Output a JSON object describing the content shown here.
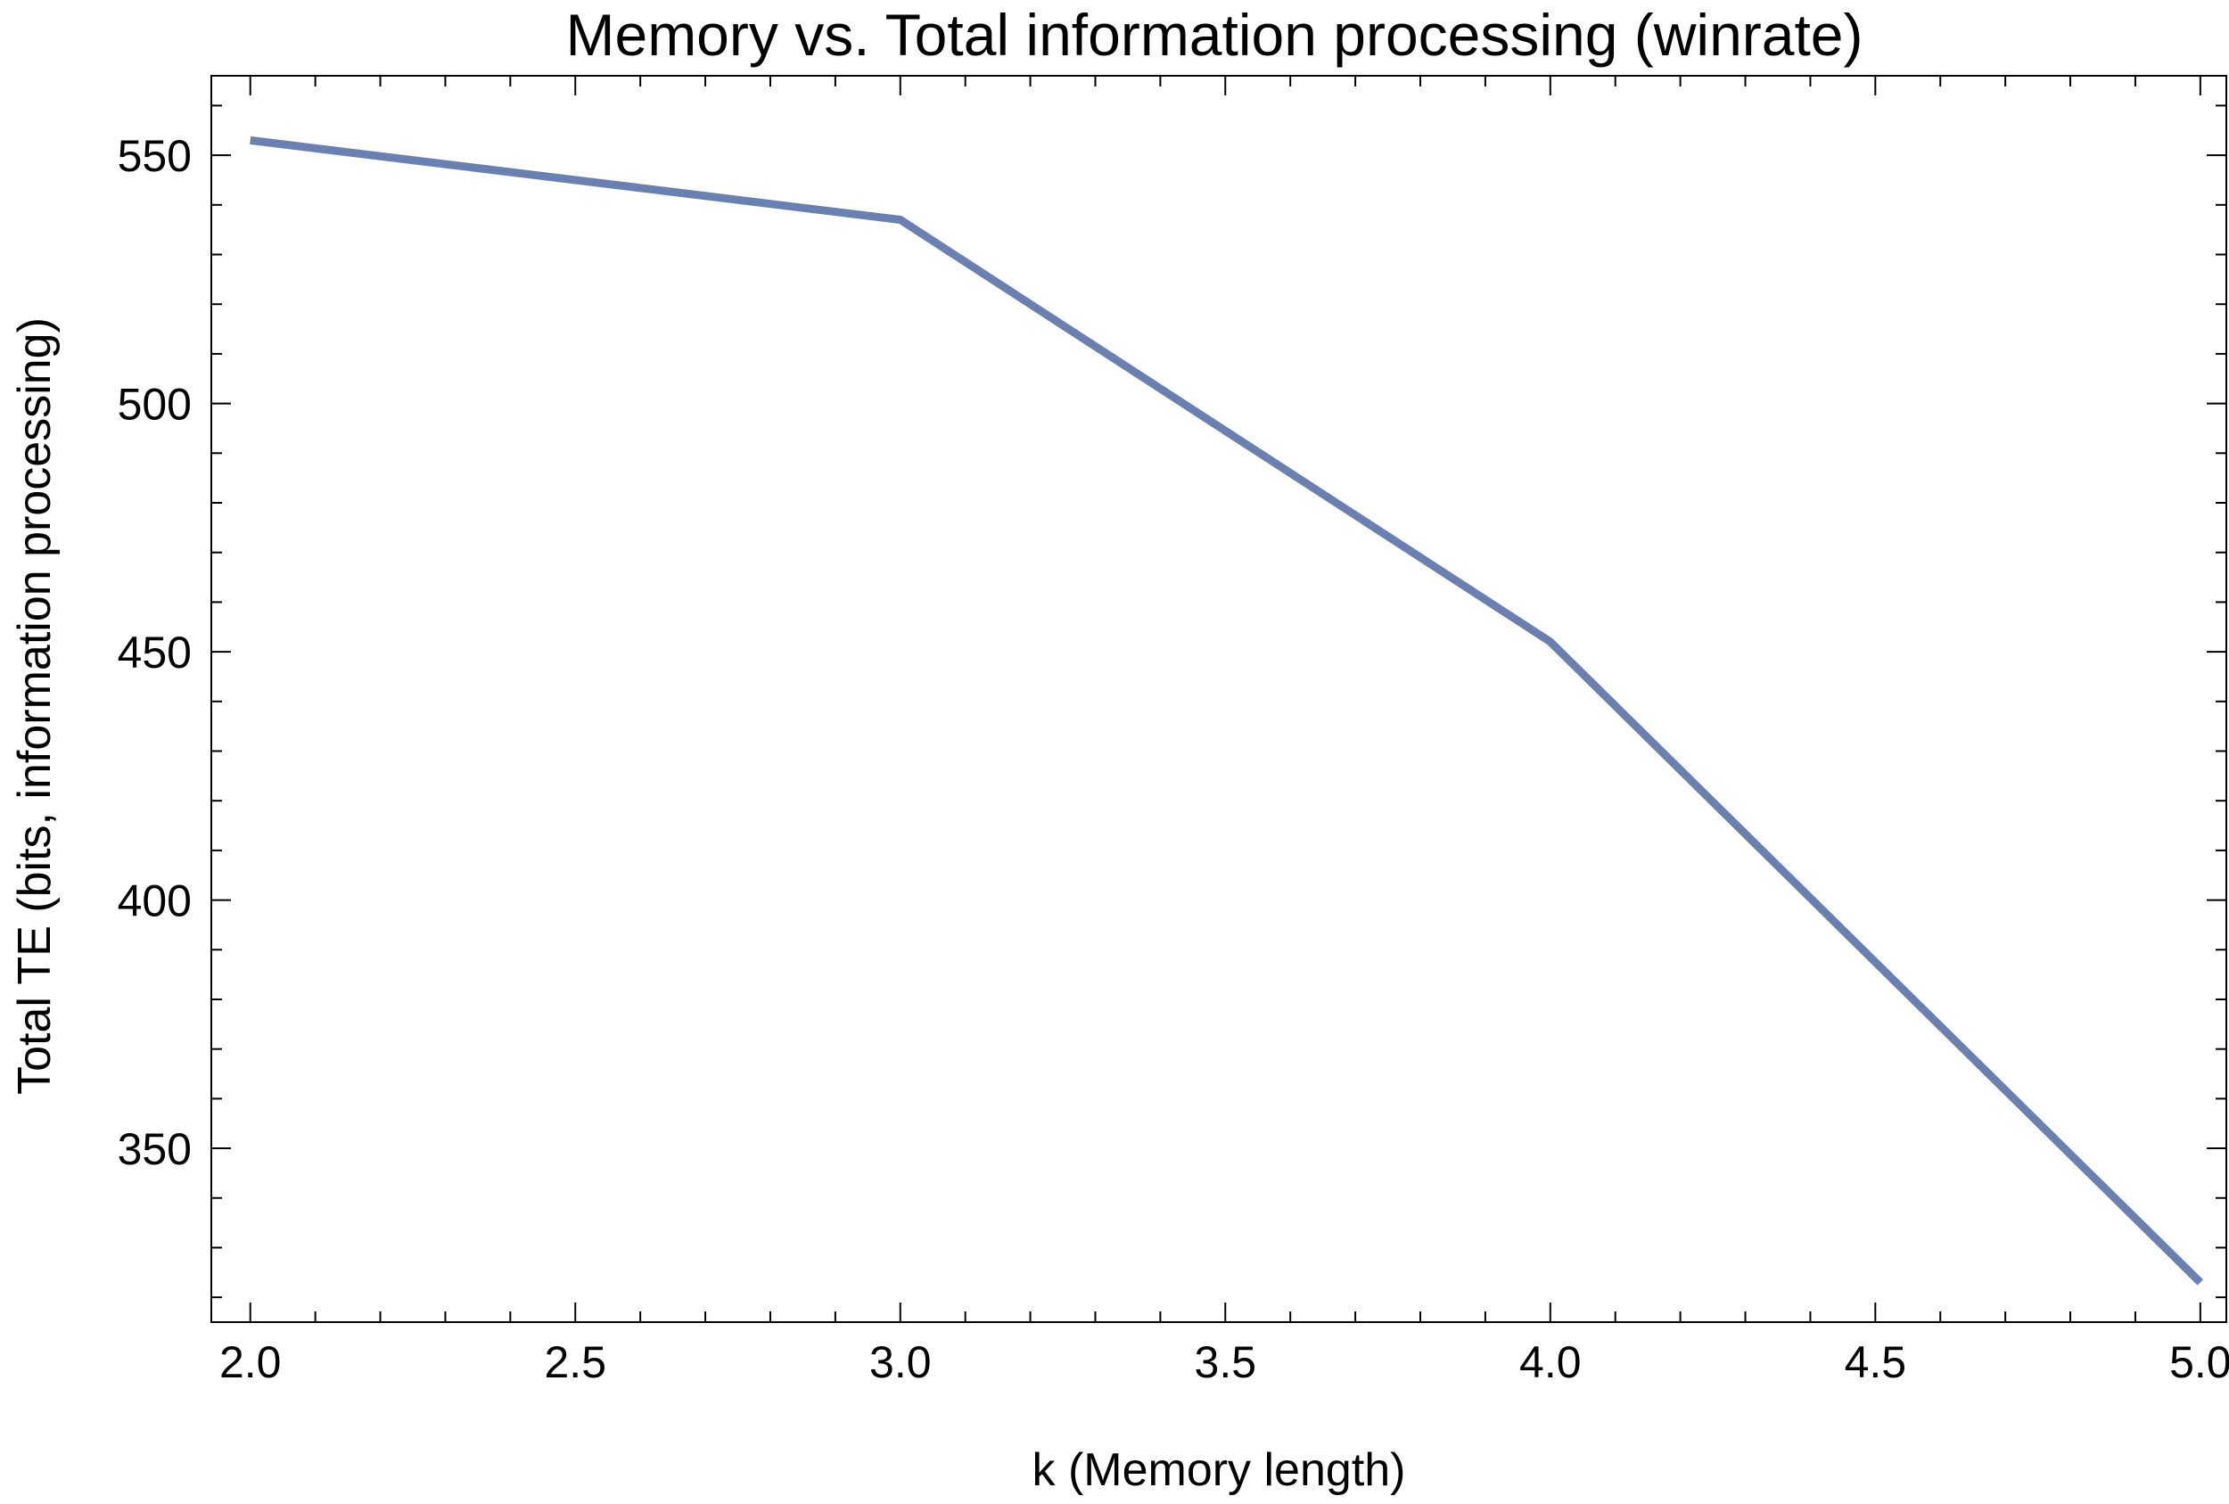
{
  "chart_data": {
    "type": "line",
    "title": "Memory vs. Total information processing (winrate)",
    "xlabel": "k (Memory length)",
    "ylabel": "Total TE (bits, information processing)",
    "xlim": [
      1.94,
      5.04
    ],
    "ylim": [
      315,
      566
    ],
    "x_ticks": [
      2.0,
      2.5,
      3.0,
      3.5,
      4.0,
      4.5,
      5.0
    ],
    "x_tick_labels": [
      "2.0",
      "2.5",
      "3.0",
      "3.5",
      "4.0",
      "4.5",
      "5.0"
    ],
    "x_minor_step": 0.1,
    "y_ticks": [
      350,
      400,
      450,
      500,
      550
    ],
    "y_tick_labels": [
      "350",
      "400",
      "450",
      "500",
      "550"
    ],
    "y_minor_step": 10,
    "grid": false,
    "series": [
      {
        "color": "#6a80b0",
        "x": [
          2,
          3,
          4,
          5
        ],
        "y": [
          553,
          537,
          452,
          323
        ]
      }
    ]
  }
}
